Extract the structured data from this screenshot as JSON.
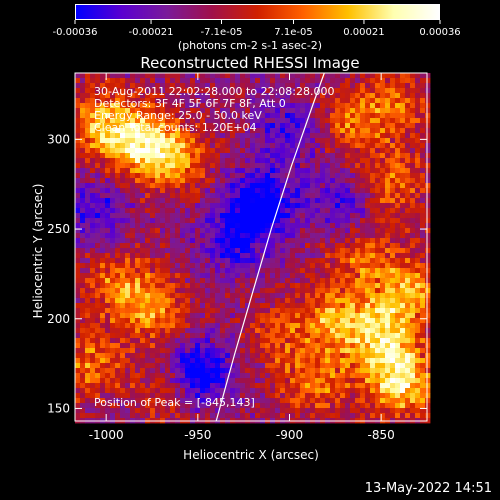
{
  "colorbar": {
    "tick_labels": [
      "-0.00036",
      "-0.00021",
      "-7.1e-05",
      "7.1e-05",
      "0.00021",
      "0.00036"
    ],
    "ticks": [
      -0.00036,
      -0.00021,
      -7.1e-05,
      7.1e-05,
      0.00021,
      0.00036
    ],
    "range": [
      -0.00036,
      0.00036
    ],
    "units": "(photons cm-2 s-1 asec-2)",
    "colors": [
      "#0000ff",
      "#5a00d0",
      "#7a1a9a",
      "#a0104a",
      "#d02000",
      "#ff6000",
      "#ffc000",
      "#ffffb0",
      "#ffffff"
    ]
  },
  "chart_data": {
    "type": "heatmap",
    "title": "Reconstructed RHESSI Image",
    "xlabel": "Heliocentric X (arcsec)",
    "ylabel": "Heliocentric Y (arcsec)",
    "xlim": [
      -1017,
      -825
    ],
    "ylim": [
      143,
      337
    ],
    "x_ticks": [
      -1000,
      -950,
      -900,
      -850
    ],
    "x_tick_labels": [
      "-1000",
      "-950",
      "-900",
      "-850"
    ],
    "y_ticks": [
      150,
      200,
      250,
      300
    ],
    "y_tick_labels": [
      "150",
      "200",
      "250",
      "300"
    ],
    "annotations": [
      "30-Aug-2011 22:02:28.000 to 22:08:28.000",
      "Detectors: 3F 4F 5F 6F 7F 8F, Att 0",
      "Energy Range: 25.0 - 50.0 keV",
      "Clean     Total counts: 1.20E+04"
    ],
    "peak_label": "Position of Peak = [-845,143]",
    "peak": [
      -845,
      143
    ],
    "limb_curve": [
      [
        -940,
        143
      ],
      [
        -930,
        180
      ],
      [
        -920,
        215
      ],
      [
        -910,
        250
      ],
      [
        -899,
        285
      ],
      [
        -887,
        320
      ],
      [
        -881,
        337
      ]
    ],
    "hot_regions": [
      {
        "x": -985,
        "y": 300,
        "intensity": 0.00032
      },
      {
        "x": -965,
        "y": 290,
        "intensity": 0.00028
      },
      {
        "x": -1005,
        "y": 310,
        "intensity": 0.00022
      },
      {
        "x": -975,
        "y": 205,
        "intensity": 0.00024
      },
      {
        "x": -995,
        "y": 220,
        "intensity": 0.00018
      },
      {
        "x": -1008,
        "y": 175,
        "intensity": 0.0002
      },
      {
        "x": -965,
        "y": 160,
        "intensity": 0.00016
      },
      {
        "x": -840,
        "y": 165,
        "intensity": 0.00036
      },
      {
        "x": -850,
        "y": 190,
        "intensity": 0.0003
      },
      {
        "x": -835,
        "y": 215,
        "intensity": 0.00026
      },
      {
        "x": -875,
        "y": 200,
        "intensity": 0.00024
      },
      {
        "x": -860,
        "y": 235,
        "intensity": 0.00018
      },
      {
        "x": -845,
        "y": 275,
        "intensity": 0.00022
      },
      {
        "x": -865,
        "y": 310,
        "intensity": 0.0002
      },
      {
        "x": -840,
        "y": 320,
        "intensity": 0.00016
      },
      {
        "x": -905,
        "y": 190,
        "intensity": 0.00014
      },
      {
        "x": -885,
        "y": 165,
        "intensity": 0.0002
      }
    ],
    "cold_regions": [
      {
        "x": -915,
        "y": 265,
        "intensity": -0.0003
      },
      {
        "x": -930,
        "y": 245,
        "intensity": -0.00022
      },
      {
        "x": -950,
        "y": 170,
        "intensity": -0.00034
      },
      {
        "x": -900,
        "y": 305,
        "intensity": -0.00018
      },
      {
        "x": -870,
        "y": 265,
        "intensity": -0.0002
      },
      {
        "x": -1005,
        "y": 260,
        "intensity": -0.00016
      }
    ]
  },
  "timestamp": "13-May-2022 14:51"
}
